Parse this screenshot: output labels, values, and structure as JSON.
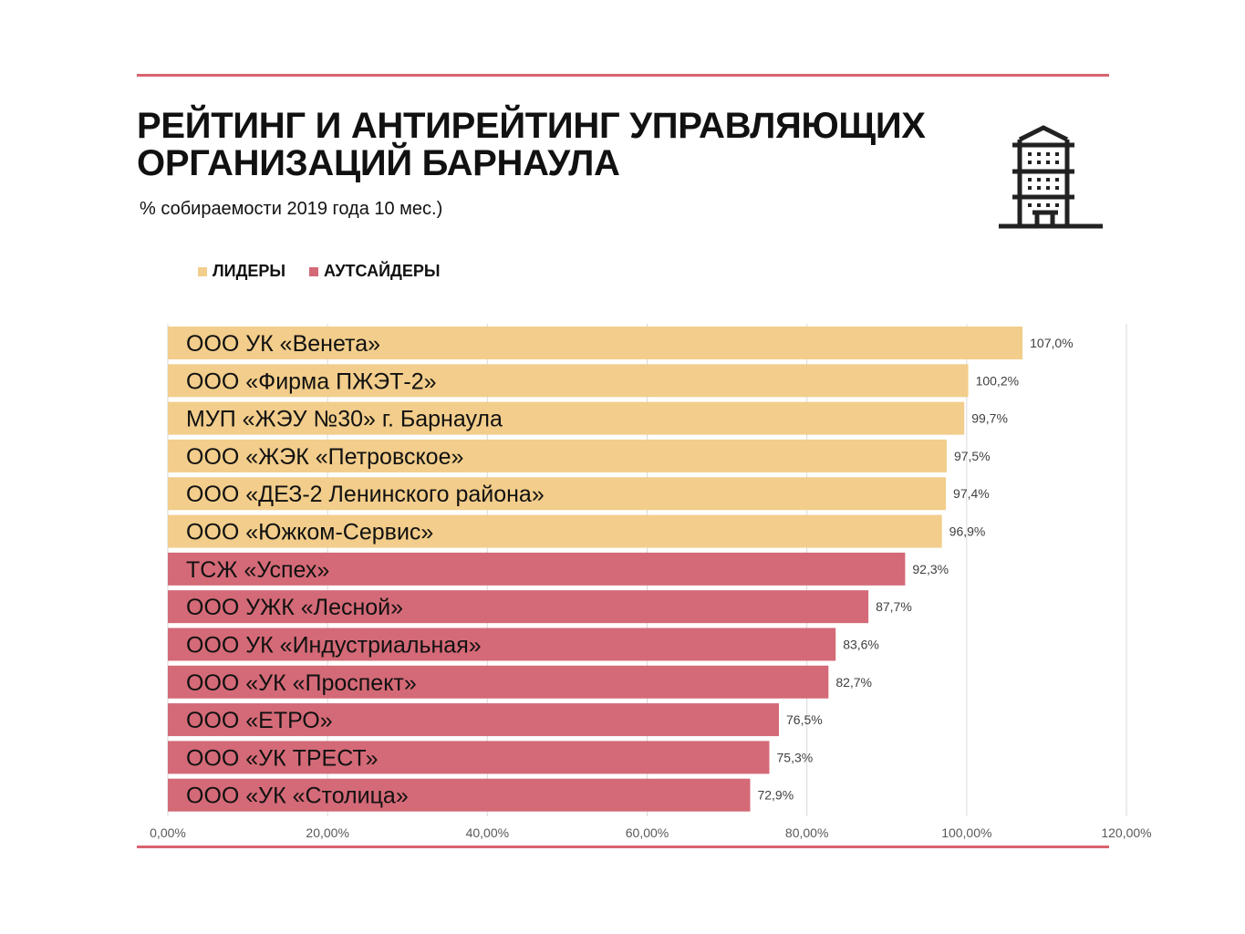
{
  "title_line1": "РЕЙТИНГ И АНТИРЕЙТИНГ УПРАВЛЯЮЩИХ",
  "title_line2": "ОРГАНИЗАЦИЙ БАРНАУЛА",
  "subtitle": "% собираемости 2019 года 10 мес.)",
  "icon": "building-icon",
  "colors": {
    "leaders": "#F2CD8B",
    "outsiders": "#D46A77",
    "rule": "#D9636F"
  },
  "chart_data": {
    "type": "bar",
    "orientation": "horizontal",
    "legend": [
      {
        "name": "ЛИДЕРЫ",
        "color": "#F2CD8B"
      },
      {
        "name": "АУТСАЙДЕРЫ",
        "color": "#D46A77"
      }
    ],
    "legend_position": "top-left",
    "categories": [
      "ООО УК «Венета»",
      "ООО «Фирма ПЖЭТ-2»",
      "МУП «ЖЭУ №30»  г. Барнаула",
      "ООО «ЖЭК «Петровское»",
      "ООО «ДЕЗ-2 Ленинского района»",
      "ООО «Южком-Сервис»",
      "ТСЖ «Успех»",
      "ООО УЖК «Лесной»",
      "ООО УК «Индустриальная»",
      "ООО «УК «Проспект»",
      "ООО «ЕТРО»",
      "ООО «УК ТРЕСТ»",
      "ООО «УК «Столица»"
    ],
    "values": [
      107.0,
      100.2,
      99.7,
      97.5,
      97.4,
      96.9,
      92.3,
      87.7,
      83.6,
      82.7,
      76.5,
      75.3,
      72.9
    ],
    "data_labels": [
      "107,0%",
      "100,2%",
      "99,7%",
      "97,5%",
      "97,4%",
      "96,9%",
      "92,3%",
      "87,7%",
      "83,6%",
      "82,7%",
      "76,5%",
      "75,3%",
      "72,9%"
    ],
    "group": [
      "ЛИДЕРЫ",
      "ЛИДЕРЫ",
      "ЛИДЕРЫ",
      "ЛИДЕРЫ",
      "ЛИДЕРЫ",
      "ЛИДЕРЫ",
      "АУТСАЙДЕРЫ",
      "АУТСАЙДЕРЫ",
      "АУТСАЙДЕРЫ",
      "АУТСАЙДЕРЫ",
      "АУТСАЙДЕРЫ",
      "АУТСАЙДЕРЫ",
      "АУТСАЙДЕРЫ"
    ],
    "xlim": [
      0,
      120
    ],
    "xticks": [
      0,
      20,
      40,
      60,
      80,
      100,
      120
    ],
    "xtick_labels": [
      "0,00%",
      "20,00%",
      "40,00%",
      "60,00%",
      "80,00%",
      "100,00%",
      "120,00%"
    ],
    "grid": true
  }
}
